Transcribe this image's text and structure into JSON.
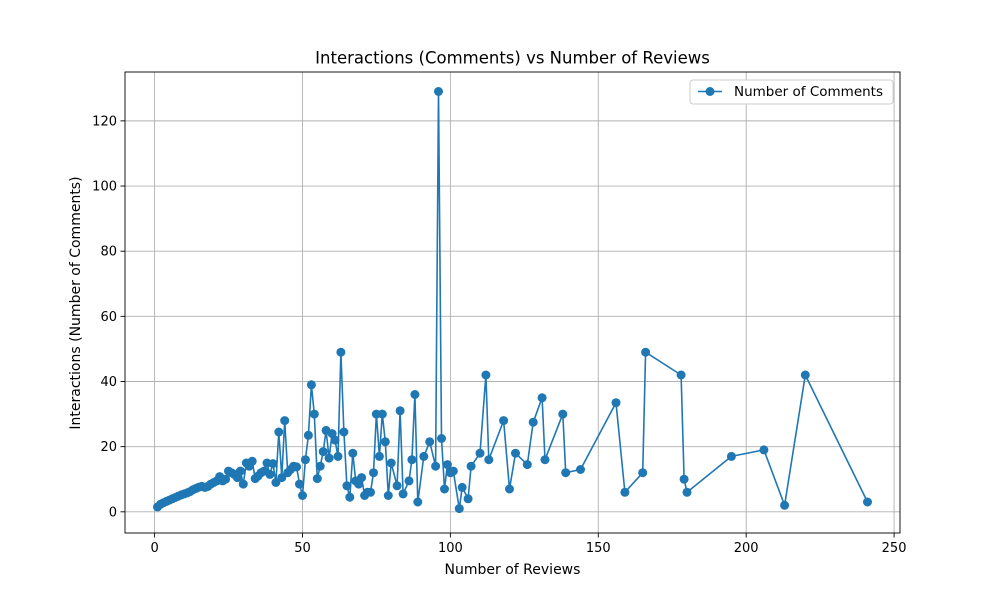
{
  "chart_data": {
    "type": "line",
    "title": "Interactions (Comments) vs Number of Reviews",
    "xlabel": "Number of Reviews",
    "ylabel": "Interactions (Number of Comments)",
    "xlim": [
      -10,
      252
    ],
    "ylim": [
      -6.5,
      135
    ],
    "xticks": [
      0,
      50,
      100,
      150,
      200,
      250
    ],
    "yticks": [
      0,
      20,
      40,
      60,
      80,
      100,
      120
    ],
    "grid": true,
    "legend_position": "top-right",
    "series": [
      {
        "name": "Number of Comments",
        "color": "#1f77b4",
        "marker": "circle",
        "x": [
          1,
          2,
          3,
          4,
          5,
          6,
          7,
          8,
          9,
          10,
          11,
          12,
          13,
          14,
          15,
          16,
          17,
          18,
          19,
          20,
          21,
          22,
          23,
          24,
          25,
          26,
          27,
          28,
          29,
          30,
          31,
          32,
          33,
          34,
          35,
          36,
          37,
          38,
          39,
          40,
          41,
          42,
          43,
          44,
          45,
          46,
          47,
          48,
          49,
          50,
          51,
          52,
          53,
          54,
          55,
          56,
          57,
          58,
          59,
          60,
          61,
          62,
          63,
          64,
          65,
          66,
          67,
          68,
          69,
          70,
          71,
          72,
          73,
          74,
          75,
          76,
          77,
          78,
          79,
          80,
          82,
          83,
          84,
          86,
          87,
          88,
          89,
          91,
          93,
          95,
          96,
          97,
          98,
          99,
          100,
          101,
          103,
          104,
          106,
          107,
          110,
          112,
          113,
          118,
          120,
          122,
          126,
          128,
          131,
          132,
          138,
          139,
          144,
          156,
          159,
          165,
          166,
          178,
          179,
          180,
          195,
          206,
          213,
          220,
          241
        ],
        "y": [
          1.5,
          2.3,
          2.8,
          3.2,
          3.6,
          4.0,
          4.4,
          4.8,
          5.2,
          5.5,
          5.8,
          6.2,
          6.8,
          7.2,
          7.6,
          7.8,
          7.5,
          7.8,
          8.5,
          9.0,
          9.5,
          10.8,
          9.5,
          10.0,
          12.5,
          12.0,
          11.5,
          10.5,
          12.5,
          8.5,
          15.0,
          14.0,
          15.5,
          10.2,
          11.0,
          12.0,
          12.5,
          15.0,
          11.5,
          14.8,
          9.0,
          24.5,
          10.5,
          28.0,
          12.0,
          13.0,
          14.0,
          13.8,
          8.5,
          5.0,
          16.0,
          23.5,
          39.0,
          30.0,
          10.2,
          14.0,
          18.5,
          25.0,
          16.5,
          24.0,
          22.0,
          17.0,
          49.0,
          24.5,
          8.0,
          4.5,
          18.0,
          9.5,
          8.5,
          10.5,
          5.0,
          6.0,
          6.0,
          12.0,
          30.0,
          17.0,
          30.0,
          21.5,
          5.0,
          15.0,
          8.0,
          31.0,
          5.5,
          9.5,
          16.0,
          36.0,
          3.0,
          17.0,
          21.5,
          14.0,
          129.0,
          22.5,
          7.0,
          14.5,
          12.0,
          12.5,
          1.0,
          7.5,
          4.0,
          14.0,
          18.0,
          42.0,
          16.0,
          28.0,
          7.0,
          18.0,
          14.5,
          27.5,
          35.0,
          16.0,
          30.0,
          12.0,
          13.0,
          33.5,
          6.0,
          12.0,
          49.0,
          42.0,
          10.0,
          6.0,
          17.0,
          19.0,
          2.0,
          42.0,
          3.0
        ]
      }
    ]
  }
}
